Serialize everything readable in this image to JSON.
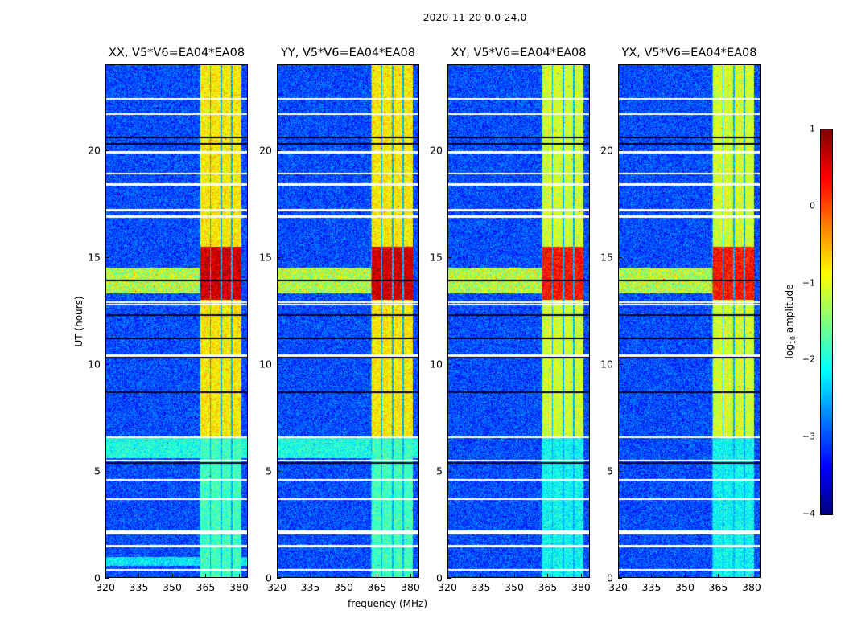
{
  "figure": {
    "suptitle": "2020-11-20 0.0-24.0"
  },
  "chart_data": {
    "type": "heatmap",
    "title": "2020-11-20 0.0-24.0",
    "xlabel": "frequency (MHz)",
    "ylabel": "UT (hours)",
    "xlim": [
      320,
      384
    ],
    "ylim": [
      0,
      24
    ],
    "xticks": [
      "320",
      "335",
      "350",
      "365",
      "380"
    ],
    "yticks": [
      "0",
      "5",
      "10",
      "15",
      "20"
    ],
    "panels": [
      {
        "title": "XX, V5*V6=EA04*EA08"
      },
      {
        "title": "YY, V5*V6=EA04*EA08"
      },
      {
        "title": "XY, V5*V6=EA04*EA08"
      },
      {
        "title": "YX, V5*V6=EA04*EA08"
      }
    ],
    "colorbar": {
      "label_prefix": "log",
      "label_sub": "10",
      "label_suffix": " amplitude",
      "range": [
        -4,
        1
      ],
      "ticks": [
        "1",
        "0",
        "−1",
        "−2",
        "−3",
        "−4"
      ],
      "colormap": "jet"
    },
    "features": {
      "background_level": -3,
      "rfi_band_mhz": [
        362,
        381
      ],
      "rfi_peak_hours": [
        13,
        15.5
      ],
      "rfi_peak_level": 0.6,
      "rfi_level_day": -0.8,
      "rfi_level_early": -1.8,
      "rfi_early_until_hour": 6.6
    }
  }
}
